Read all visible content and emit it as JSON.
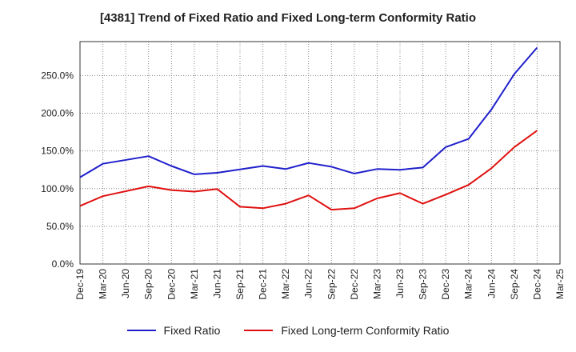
{
  "title": "[4381]  Trend of Fixed Ratio and Fixed Long-term Conformity Ratio",
  "chart_data": {
    "type": "line",
    "title": "[4381]  Trend of Fixed Ratio and Fixed Long-term Conformity Ratio",
    "x_ticks": [
      "Dec-19",
      "Mar-20",
      "Jun-20",
      "Sep-20",
      "Dec-20",
      "Mar-21",
      "Jun-21",
      "Sep-21",
      "Dec-21",
      "Mar-22",
      "Jun-22",
      "Sep-22",
      "Dec-22",
      "Mar-23",
      "Jun-23",
      "Sep-23",
      "Dec-23",
      "Mar-24",
      "Jun-24",
      "Sep-24",
      "Dec-24",
      "Mar-25"
    ],
    "y_ticks": [
      "0.0%",
      "50.0%",
      "100.0%",
      "150.0%",
      "200.0%",
      "250.0%"
    ],
    "ylim": [
      0,
      295
    ],
    "grid": true,
    "legend_position": "bottom",
    "series": [
      {
        "name": "Fixed Ratio",
        "color": "#1f1fcc",
        "points": [
          [
            "Dec-19",
            115
          ],
          [
            "Mar-20",
            133
          ],
          [
            "Sep-20",
            143
          ],
          [
            "Dec-20",
            130
          ],
          [
            "Mar-21",
            119
          ],
          [
            "Jun-21",
            121
          ],
          [
            "Dec-21",
            130
          ],
          [
            "Mar-22",
            126
          ],
          [
            "Jun-22",
            134
          ],
          [
            "Sep-22",
            129
          ],
          [
            "Dec-22",
            120
          ],
          [
            "Mar-23",
            126
          ],
          [
            "Jun-23",
            125
          ],
          [
            "Sep-23",
            128
          ],
          [
            "Dec-23",
            155
          ],
          [
            "Mar-24",
            166
          ],
          [
            "Jun-24",
            205
          ],
          [
            "Sep-24",
            252
          ],
          [
            "Dec-24",
            287
          ]
        ]
      },
      {
        "name": "Fixed Long-term Conformity Ratio",
        "color": "#e01010",
        "points": [
          [
            "Dec-19",
            77
          ],
          [
            "Mar-20",
            90
          ],
          [
            "Sep-20",
            103
          ],
          [
            "Dec-20",
            98
          ],
          [
            "Mar-21",
            96
          ],
          [
            "Jun-21",
            99.5
          ],
          [
            "Sep-21",
            76
          ],
          [
            "Dec-21",
            74
          ],
          [
            "Mar-22",
            80
          ],
          [
            "Jun-22",
            91
          ],
          [
            "Sep-22",
            72
          ],
          [
            "Dec-22",
            74
          ],
          [
            "Mar-23",
            87
          ],
          [
            "Jun-23",
            94
          ],
          [
            "Sep-23",
            80
          ],
          [
            "Dec-23",
            92
          ],
          [
            "Mar-24",
            105
          ],
          [
            "Jun-24",
            127
          ],
          [
            "Sep-24",
            155
          ],
          [
            "Dec-24",
            177
          ]
        ]
      }
    ]
  }
}
